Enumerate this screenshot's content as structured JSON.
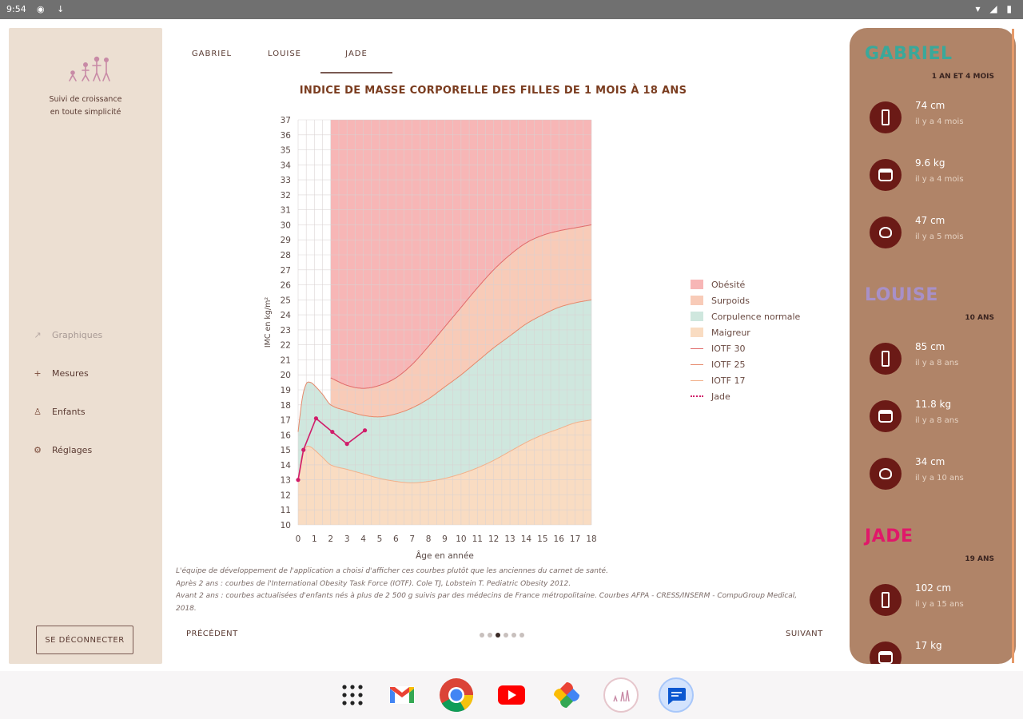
{
  "status_bar": {
    "time": "9:54",
    "left_icons": "◉ ↓",
    "right_icons": "▾ ◢ ▮"
  },
  "sidebar": {
    "tagline": "Suivi de croissance\nen toute simplicité",
    "nav": [
      {
        "label": "Graphiques",
        "icon": "chart-icon",
        "glyph": "↗"
      },
      {
        "label": "Mesures",
        "icon": "plus-icon",
        "glyph": "+"
      },
      {
        "label": "Enfants",
        "icon": "children-icon",
        "glyph": "♙"
      },
      {
        "label": "Réglages",
        "icon": "settings-icon",
        "glyph": "⚙"
      }
    ],
    "logout_label": "SE DÉCONNECTER"
  },
  "tabs": [
    {
      "label": "GABRIEL"
    },
    {
      "label": "LOUISE"
    },
    {
      "label": "JADE"
    }
  ],
  "chart_title": "INDICE DE MASSE CORPORELLE DES FILLES DE 1 MOIS À 18 ANS",
  "chart_data": {
    "type": "area",
    "title": "INDICE DE MASSE CORPORELLE DES FILLES DE 1 MOIS À 18 ANS",
    "xlabel": "Âge en année",
    "ylabel": "IMC en kg/m²",
    "xlim": [
      0,
      18
    ],
    "ylim": [
      10,
      37
    ],
    "grid": true,
    "x_ticks": [
      0,
      1,
      2,
      3,
      4,
      5,
      6,
      7,
      8,
      9,
      10,
      11,
      12,
      13,
      14,
      15,
      16,
      17,
      18
    ],
    "y_ticks": [
      10,
      11,
      12,
      13,
      14,
      15,
      16,
      17,
      18,
      19,
      20,
      21,
      22,
      23,
      24,
      25,
      26,
      27,
      28,
      29,
      30,
      31,
      32,
      33,
      34,
      35,
      36,
      37
    ],
    "legend_placement": "right",
    "bands": [
      {
        "name": "Obésité",
        "color": "#f7b6b6"
      },
      {
        "name": "Surpoids",
        "color": "#f8cbb8"
      },
      {
        "name": "Corpulence normale",
        "color": "#cfe7de"
      },
      {
        "name": "Maigreur",
        "color": "#f9dcc2"
      }
    ],
    "curves": [
      {
        "name": "IOTF 30",
        "color": "#e06a6a",
        "points": [
          [
            2,
            19.8
          ],
          [
            3,
            19.3
          ],
          [
            4,
            19.1
          ],
          [
            5,
            19.3
          ],
          [
            6,
            19.8
          ],
          [
            7,
            20.7
          ],
          [
            8,
            21.9
          ],
          [
            9,
            23.2
          ],
          [
            10,
            24.5
          ],
          [
            11,
            25.8
          ],
          [
            12,
            27.0
          ],
          [
            13,
            28.0
          ],
          [
            14,
            28.8
          ],
          [
            15,
            29.3
          ],
          [
            16,
            29.6
          ],
          [
            17,
            29.8
          ],
          [
            18,
            30.0
          ]
        ]
      },
      {
        "name": "IOTF 25",
        "color": "#e6886a",
        "points": [
          [
            0,
            16.2
          ],
          [
            0.25,
            18.4
          ],
          [
            0.5,
            19.4
          ],
          [
            0.75,
            19.5
          ],
          [
            1,
            19.3
          ],
          [
            1.5,
            18.7
          ],
          [
            2,
            18.0
          ],
          [
            3,
            17.6
          ],
          [
            4,
            17.3
          ],
          [
            5,
            17.2
          ],
          [
            6,
            17.4
          ],
          [
            7,
            17.8
          ],
          [
            8,
            18.4
          ],
          [
            9,
            19.2
          ],
          [
            10,
            20.0
          ],
          [
            11,
            20.9
          ],
          [
            12,
            21.8
          ],
          [
            13,
            22.6
          ],
          [
            14,
            23.4
          ],
          [
            15,
            24.0
          ],
          [
            16,
            24.5
          ],
          [
            17,
            24.8
          ],
          [
            18,
            25.0
          ]
        ]
      },
      {
        "name": "IOTF 17",
        "color": "#f2b08a",
        "points": [
          [
            0,
            13.0
          ],
          [
            0.25,
            14.7
          ],
          [
            0.5,
            15.2
          ],
          [
            0.75,
            15.2
          ],
          [
            1,
            15.0
          ],
          [
            1.5,
            14.5
          ],
          [
            2,
            14.0
          ],
          [
            3,
            13.7
          ],
          [
            4,
            13.4
          ],
          [
            5,
            13.1
          ],
          [
            6,
            12.9
          ],
          [
            7,
            12.8
          ],
          [
            8,
            12.9
          ],
          [
            9,
            13.1
          ],
          [
            10,
            13.4
          ],
          [
            11,
            13.8
          ],
          [
            12,
            14.3
          ],
          [
            13,
            14.9
          ],
          [
            14,
            15.5
          ],
          [
            15,
            16.0
          ],
          [
            16,
            16.4
          ],
          [
            17,
            16.8
          ],
          [
            18,
            17.0
          ]
        ]
      }
    ],
    "series": [
      {
        "name": "Jade",
        "color": "#d01d6a",
        "points": [
          [
            0,
            13.0
          ],
          [
            0.33,
            15.0
          ],
          [
            1.1,
            17.1
          ],
          [
            2.1,
            16.2
          ],
          [
            3,
            15.4
          ],
          [
            4.1,
            16.3
          ]
        ]
      }
    ]
  },
  "footnote": [
    "L'équipe de développement de l'application a choisi d'afficher ces courbes plutôt que les anciennes du carnet de santé.",
    "Après 2 ans : courbes de l'International Obesity Task Force (IOTF). Cole TJ, Lobstein T. Pediatric Obesity 2012.",
    "Avant 2 ans : courbes actualisées d'enfants nés à plus de 2 500 g suivis par des médecins de France métropolitaine. Courbes AFPA - CRESS/INSERM - CompuGroup Medical,",
    "2018."
  ],
  "pager": {
    "prev": "PRÉCÉDENT",
    "next": "SUIVANT",
    "count": 6,
    "active": 2
  },
  "children": [
    {
      "name": "GABRIEL",
      "color": "#3aa89a",
      "age": "1 AN ET 4 MOIS",
      "measures": [
        {
          "type": "height",
          "icon": "height-icon",
          "value": "74 cm",
          "ago": "il y a 4 mois"
        },
        {
          "type": "weight",
          "icon": "weight-icon",
          "value": "9.6 kg",
          "ago": "il y a 4 mois"
        },
        {
          "type": "head",
          "icon": "head-circumference-icon",
          "value": "47 cm",
          "ago": "il y a 5 mois"
        }
      ]
    },
    {
      "name": "LOUISE",
      "color": "#a890c8",
      "age": "10 ANS",
      "measures": [
        {
          "type": "height",
          "icon": "height-icon",
          "value": "85 cm",
          "ago": "il y a 8 ans"
        },
        {
          "type": "weight",
          "icon": "weight-icon",
          "value": "11.8 kg",
          "ago": "il y a 8 ans"
        },
        {
          "type": "head",
          "icon": "head-circumference-icon",
          "value": "34 cm",
          "ago": "il y a 10 ans"
        }
      ]
    },
    {
      "name": "JADE",
      "color": "#e0186a",
      "age": "19 ANS",
      "measures": [
        {
          "type": "height",
          "icon": "height-icon",
          "value": "102 cm",
          "ago": "il y a 15 ans"
        },
        {
          "type": "weight",
          "icon": "weight-icon",
          "value": "17 kg",
          "ago": ""
        }
      ]
    }
  ],
  "dock": [
    {
      "name": "app-drawer-icon"
    },
    {
      "name": "gmail-icon"
    },
    {
      "name": "chrome-icon"
    },
    {
      "name": "youtube-icon"
    },
    {
      "name": "photos-icon"
    },
    {
      "name": "growth-app-icon"
    },
    {
      "name": "messages-icon"
    }
  ]
}
